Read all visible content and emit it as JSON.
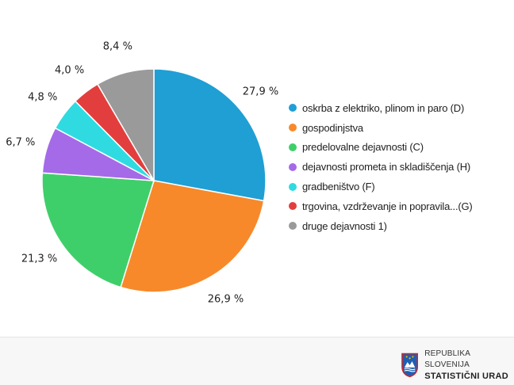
{
  "chart_data": {
    "type": "pie",
    "slices": [
      {
        "name": "oskrba z elektriko, plinom in paro (D)",
        "value": 27.9,
        "label": "27,9 %",
        "color": "#1f9fd4"
      },
      {
        "name": "gospodinjstva",
        "value": 26.9,
        "label": "26,9 %",
        "color": "#f7892a"
      },
      {
        "name": "predelovalne dejavnosti (C)",
        "value": 21.3,
        "label": "21,3 %",
        "color": "#3fcf6a"
      },
      {
        "name": "dejavnosti prometa in skladiščenja (H)",
        "value": 6.7,
        "label": "6,7 %",
        "color": "#a56ae8"
      },
      {
        "name": "gradbeništvo (F)",
        "value": 4.8,
        "label": "4,8 %",
        "color": "#2fdbe0"
      },
      {
        "name": "trgovina, vzdrževanje in popravila...(G)",
        "value": 4.0,
        "label": "4,0 %",
        "color": "#e33e3e"
      },
      {
        "name": "druge dejavnosti 1)",
        "value": 8.4,
        "label": "8,4 %",
        "color": "#9a9a9a"
      }
    ],
    "legend_position": "right"
  },
  "footer": {
    "logo_line1": "REPUBLIKA SLOVENIJA",
    "logo_line2": "STATISTIČNI URAD"
  }
}
